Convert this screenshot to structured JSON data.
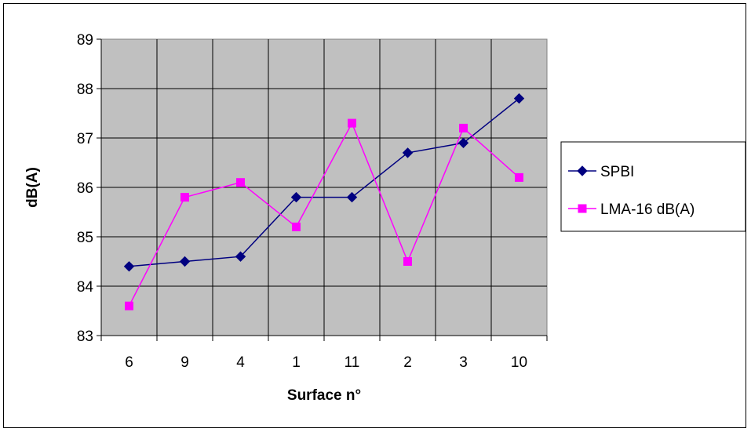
{
  "chart_data": {
    "type": "line",
    "title": "",
    "xlabel": "Surface n°",
    "ylabel": "dB(A)",
    "categories": [
      "6",
      "9",
      "4",
      "1",
      "11",
      "2",
      "3",
      "10"
    ],
    "ylim": [
      83,
      89
    ],
    "yticks": [
      "83",
      "84",
      "85",
      "86",
      "87",
      "88",
      "89"
    ],
    "grid": true,
    "plot_background": "#c0c0c0",
    "legend_position": "right",
    "series": [
      {
        "name": "SPBI",
        "values": [
          84.4,
          84.5,
          84.6,
          85.8,
          85.8,
          86.7,
          86.9,
          87.8
        ],
        "color": "#000080",
        "marker": "diamond"
      },
      {
        "name": "LMA-16 dB(A)",
        "values": [
          83.6,
          85.8,
          86.1,
          85.2,
          87.3,
          84.5,
          87.2,
          86.2
        ],
        "color": "#ff00ff",
        "marker": "square"
      }
    ]
  }
}
